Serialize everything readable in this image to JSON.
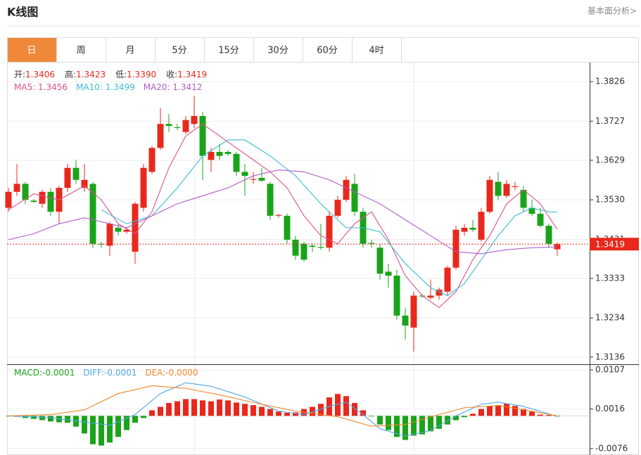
{
  "header": {
    "title": "K线图",
    "link": "基本面分析>"
  },
  "tabs": [
    "日",
    "周",
    "月",
    "5分",
    "15分",
    "30分",
    "60分",
    "4时"
  ],
  "chart_data": [
    {
      "type": "candlestick",
      "info": [
        {
          "label": "开:",
          "value": "1.3406"
        },
        {
          "label": "高:",
          "value": "1.3423"
        },
        {
          "label": "低:",
          "value": "1.3390"
        },
        {
          "label": "收:",
          "value": "1.3419"
        }
      ],
      "up_color": "#e8281c",
      "down_color": "#1aa31a",
      "ohlc": [
        [
          1.351,
          1.356,
          1.35,
          1.355
        ],
        [
          1.355,
          1.362,
          1.354,
          1.357
        ],
        [
          1.357,
          1.3575,
          1.352,
          1.353
        ],
        [
          1.3528,
          1.3532,
          1.3522,
          1.3525
        ],
        [
          1.352,
          1.3555,
          1.351,
          1.355
        ],
        [
          1.355,
          1.356,
          1.349,
          1.35
        ],
        [
          1.35,
          1.3565,
          1.347,
          1.356
        ],
        [
          1.356,
          1.362,
          1.355,
          1.361
        ],
        [
          1.361,
          1.363,
          1.357,
          1.358
        ],
        [
          1.356,
          1.362,
          1.355,
          1.358
        ],
        [
          1.357,
          1.3575,
          1.341,
          1.342
        ],
        [
          1.342,
          1.3425,
          1.341,
          1.3418
        ],
        [
          1.3415,
          1.3475,
          1.339,
          1.347
        ],
        [
          1.346,
          1.347,
          1.344,
          1.345
        ],
        [
          1.345,
          1.346,
          1.3445,
          1.3455
        ],
        [
          1.34,
          1.3525,
          1.337,
          1.352
        ],
        [
          1.351,
          1.362,
          1.35,
          1.361
        ],
        [
          1.36,
          1.3665,
          1.3595,
          1.366
        ],
        [
          1.366,
          1.376,
          1.3655,
          1.372
        ],
        [
          1.372,
          1.3745,
          1.37,
          1.3715
        ],
        [
          1.3712,
          1.372,
          1.3705,
          1.371
        ],
        [
          1.37,
          1.374,
          1.3695,
          1.373
        ],
        [
          1.372,
          1.379,
          1.371,
          1.374
        ],
        [
          1.374,
          1.375,
          1.358,
          1.364
        ],
        [
          1.363,
          1.366,
          1.36,
          1.365
        ],
        [
          1.365,
          1.367,
          1.363,
          1.364
        ],
        [
          1.365,
          1.3655,
          1.364,
          1.3645
        ],
        [
          1.3645,
          1.365,
          1.359,
          1.36
        ],
        [
          1.36,
          1.362,
          1.354,
          1.359
        ],
        [
          1.358,
          1.36,
          1.357,
          1.3582
        ],
        [
          1.3585,
          1.361,
          1.3575,
          1.3578
        ],
        [
          1.357,
          1.3575,
          1.348,
          1.349
        ],
        [
          1.349,
          1.3495,
          1.3485,
          1.3492
        ],
        [
          1.349,
          1.3495,
          1.342,
          1.343
        ],
        [
          1.343,
          1.344,
          1.338,
          1.339
        ],
        [
          1.342,
          1.3425,
          1.3375,
          1.338
        ],
        [
          1.3415,
          1.342,
          1.34,
          1.3412
        ],
        [
          1.3412,
          1.347,
          1.3405,
          1.341
        ],
        [
          1.341,
          1.35,
          1.34,
          1.349
        ],
        [
          1.349,
          1.354,
          1.3485,
          1.353
        ],
        [
          1.353,
          1.359,
          1.3525,
          1.358
        ],
        [
          1.357,
          1.3595,
          1.349,
          1.35
        ],
        [
          1.35,
          1.351,
          1.341,
          1.342
        ],
        [
          1.3422,
          1.343,
          1.341,
          1.342
        ],
        [
          1.341,
          1.342,
          1.333,
          1.3345
        ],
        [
          1.335,
          1.337,
          1.331,
          1.334
        ],
        [
          1.334,
          1.3355,
          1.323,
          1.324
        ],
        [
          1.324,
          1.326,
          1.318,
          1.3215
        ],
        [
          1.321,
          1.33,
          1.315,
          1.329
        ],
        [
          1.329,
          1.3295,
          1.3285,
          1.3288
        ],
        [
          1.3285,
          1.333,
          1.328,
          1.329
        ],
        [
          1.329,
          1.331,
          1.328,
          1.3305
        ],
        [
          1.33,
          1.3365,
          1.329,
          1.336
        ],
        [
          1.336,
          1.3465,
          1.3355,
          1.3455
        ],
        [
          1.345,
          1.347,
          1.344,
          1.346
        ],
        [
          1.346,
          1.348,
          1.345,
          1.3455
        ],
        [
          1.343,
          1.351,
          1.3425,
          1.35
        ],
        [
          1.35,
          1.359,
          1.3495,
          1.358
        ],
        [
          1.3575,
          1.36,
          1.353,
          1.354
        ],
        [
          1.354,
          1.358,
          1.3535,
          1.357
        ],
        [
          1.3562,
          1.3575,
          1.3555,
          1.3564
        ],
        [
          1.3555,
          1.3565,
          1.35,
          1.351
        ],
        [
          1.351,
          1.353,
          1.349,
          1.3495
        ],
        [
          1.3495,
          1.351,
          1.346,
          1.3465
        ],
        [
          1.3465,
          1.347,
          1.341,
          1.342
        ],
        [
          1.3406,
          1.3423,
          1.339,
          1.3419
        ]
      ],
      "series": [
        {
          "label": "MA5: 1.3456",
          "color": "#e0508a",
          "x": [
            0,
            3,
            6,
            9,
            11,
            13,
            15,
            17,
            19,
            21,
            23,
            25,
            27,
            29,
            31,
            33,
            35,
            37,
            39,
            41,
            43,
            45,
            47,
            49,
            51,
            53,
            55,
            57,
            59,
            61,
            63,
            65
          ],
          "values": [
            1.3505,
            1.3545,
            1.353,
            1.3565,
            1.353,
            1.347,
            1.3445,
            1.35,
            1.361,
            1.369,
            1.372,
            1.369,
            1.366,
            1.363,
            1.36,
            1.356,
            1.349,
            1.344,
            1.342,
            1.347,
            1.35,
            1.343,
            1.334,
            1.329,
            1.326,
            1.33,
            1.338,
            1.344,
            1.352,
            1.3555,
            1.352,
            1.3456
          ]
        },
        {
          "label": "MA10: 1.3499",
          "color": "#3cbcd6",
          "x": [
            11,
            14,
            17,
            20,
            23,
            26,
            28,
            31,
            34,
            37,
            40,
            42,
            44,
            47,
            50,
            52,
            54,
            56,
            58,
            60,
            62,
            64,
            65
          ],
          "values": [
            1.3505,
            1.347,
            1.349,
            1.356,
            1.364,
            1.368,
            1.368,
            1.364,
            1.359,
            1.352,
            1.346,
            1.346,
            1.345,
            1.337,
            1.331,
            1.329,
            1.332,
            1.338,
            1.344,
            1.349,
            1.351,
            1.35,
            1.3499
          ]
        },
        {
          "label": "MA20: 1.3412",
          "color": "#b05cc8",
          "x": [
            0,
            3,
            6,
            9,
            12,
            14,
            17,
            20,
            23,
            26,
            29,
            32,
            35,
            38,
            41,
            44,
            47,
            50,
            53,
            56,
            59,
            62,
            65
          ],
          "values": [
            1.343,
            1.3445,
            1.347,
            1.3485,
            1.347,
            1.346,
            1.349,
            1.352,
            1.354,
            1.356,
            1.359,
            1.3605,
            1.36,
            1.358,
            1.355,
            1.352,
            1.348,
            1.344,
            1.34,
            1.3395,
            1.3405,
            1.341,
            1.3412
          ]
        }
      ],
      "last_price": 1.3419,
      "last_price_color": "#e8281c",
      "ylim": [
        1.3118,
        1.3872
      ],
      "yticks": [
        1.3826,
        1.3727,
        1.3629,
        {
          "value": 1.353,
          "label": "1.3530"
        },
        1.3431,
        1.3333,
        1.3234,
        1.3136
      ],
      "grid": true
    },
    {
      "type": "macd",
      "label": "MACD:-0.0001",
      "color": "#1aa31a",
      "up_color": "#e8281c",
      "down_color": "#1aa31a",
      "values": [
        -0.0001,
        -0.0002,
        -0.0005,
        -0.0007,
        -0.001,
        -0.0013,
        -0.0015,
        -0.0016,
        -0.0025,
        -0.0041,
        -0.0066,
        -0.0069,
        -0.0062,
        -0.0049,
        -0.0033,
        -0.0016,
        -0.0005,
        0.0013,
        0.0021,
        0.003,
        0.0034,
        0.0039,
        0.0039,
        0.0036,
        0.0034,
        0.0038,
        0.0036,
        0.0031,
        0.0028,
        0.0025,
        0.0021,
        0.0016,
        0.001,
        0.0007,
        0.0008,
        0.0016,
        0.0021,
        0.0028,
        0.0043,
        0.0051,
        0.0046,
        0.003,
        0.0013,
        -0.0001,
        -0.002,
        -0.0033,
        -0.0049,
        -0.0056,
        -0.0046,
        -0.0043,
        -0.0036,
        -0.003,
        -0.002,
        -0.001,
        -0.0003,
        0.0005,
        0.0016,
        0.0023,
        0.0025,
        0.0028,
        0.0023,
        0.0016,
        0.001,
        0.0003,
        0.0002,
        -0.0001
      ],
      "series": [
        {
          "label": "DIFF:-0.0001",
          "color": "#4ea6e6",
          "x": [
            0,
            5,
            9,
            12,
            15,
            18,
            21,
            24,
            28,
            32,
            35,
            38,
            40,
            42,
            44,
            47,
            50,
            53,
            56,
            58,
            61,
            65
          ],
          "values": [
            0.0,
            -0.0004,
            -0.0014,
            -0.0022,
            0.0003,
            0.0052,
            0.0077,
            0.0069,
            0.0044,
            0.0011,
            0.0003,
            0.0022,
            0.0032,
            0.0003,
            -0.003,
            -0.0047,
            -0.0034,
            0.0,
            0.0027,
            0.0032,
            0.0022,
            -0.0001
          ]
        },
        {
          "label": "DEA:-0.0000",
          "color": "#f0872a",
          "x": [
            0,
            5,
            9,
            13,
            17,
            21,
            25,
            30,
            34,
            39,
            43,
            47,
            51,
            54,
            58,
            62,
            65
          ],
          "values": [
            0.0,
            0.0003,
            0.0014,
            0.0052,
            0.007,
            0.0064,
            0.0049,
            0.0027,
            0.0011,
            -0.0002,
            -0.0024,
            -0.002,
            0.0003,
            0.0019,
            0.0024,
            0.0011,
            0.0
          ]
        }
      ],
      "ylim": [
        -0.0091,
        0.012
      ],
      "yticks": [
        0.0107,
        0.0016,
        -0.0076
      ],
      "grid": true
    }
  ]
}
